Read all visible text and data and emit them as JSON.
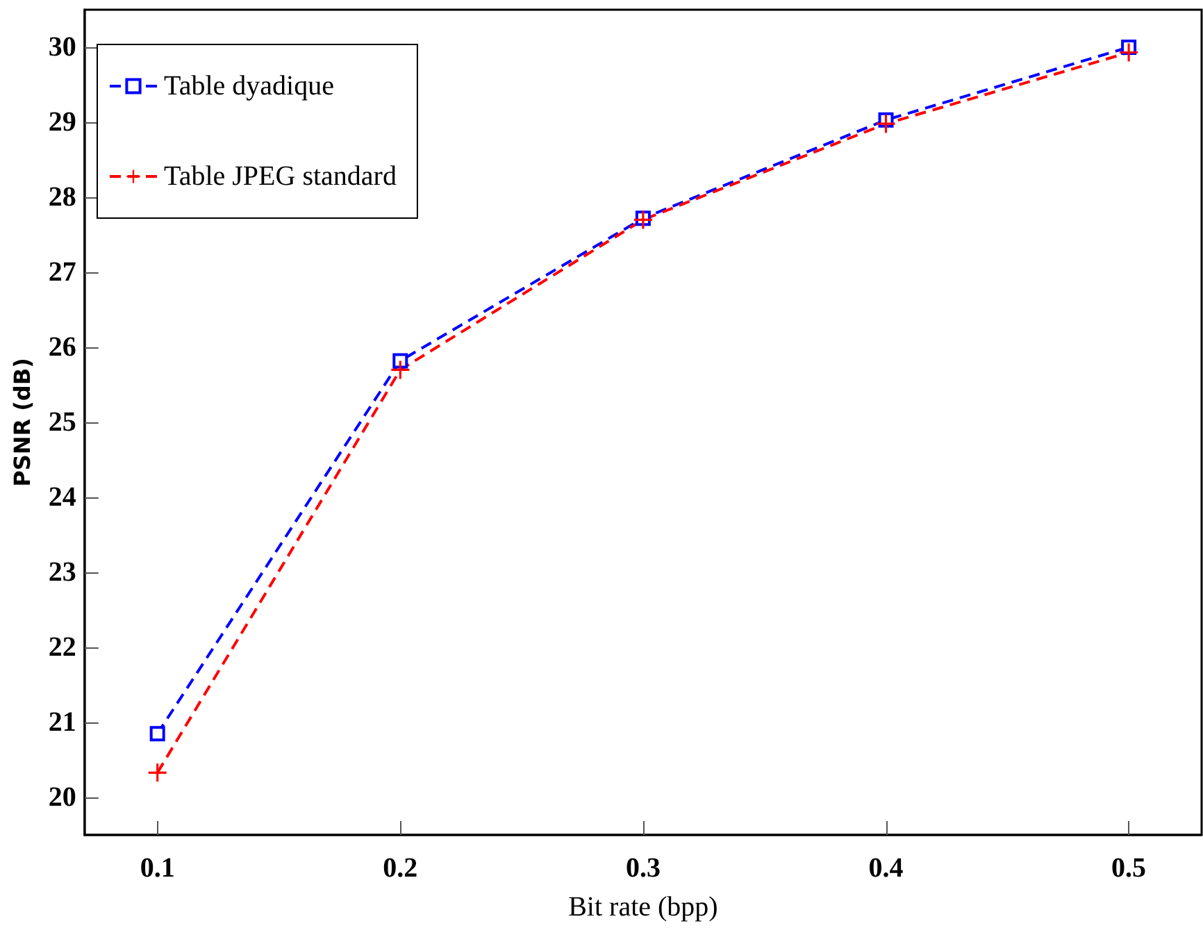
{
  "chart_data": {
    "type": "line",
    "xlabel": "Bit rate (bpp)",
    "ylabel": "PSNR (dB)",
    "x": [
      0.1,
      0.2,
      0.3,
      0.4,
      0.5
    ],
    "series": [
      {
        "name": "Table dyadique",
        "color": "#0000ff",
        "marker": "square",
        "line_style": "dashed",
        "values": [
          20.85,
          25.82,
          27.72,
          29.03,
          30.0
        ]
      },
      {
        "name": "Table JPEG standard",
        "color": "#ff0000",
        "marker": "cross",
        "line_style": "dashed",
        "values": [
          20.33,
          25.7,
          27.7,
          28.98,
          29.93
        ]
      }
    ],
    "xlim": [
      0.07,
      0.53
    ],
    "xticks": [
      0.1,
      0.2,
      0.3,
      0.4,
      0.5
    ],
    "ylim": [
      19.5,
      30.5
    ],
    "yticks": [
      20,
      21,
      22,
      23,
      24,
      25,
      26,
      27,
      28,
      29,
      30
    ],
    "grid": false,
    "legend": "top left"
  }
}
